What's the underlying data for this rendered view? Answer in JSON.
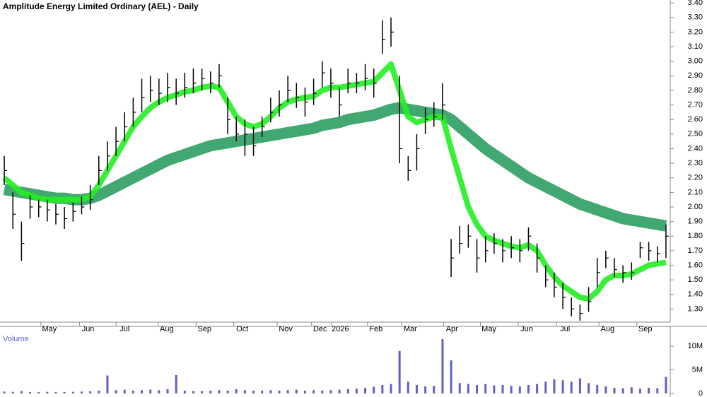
{
  "chart_data": [
    {
      "type": "ohlc",
      "title": "Amplitude Energy Limited Ordinary (AEL) - Daily",
      "high": [
        2.35,
        2.1,
        1.9,
        2.08,
        2.05,
        2.05,
        2.02,
        2.0,
        2.03,
        2.07,
        2.15,
        2.35,
        2.45,
        2.55,
        2.65,
        2.75,
        2.88,
        2.9,
        2.88,
        2.92,
        2.88,
        2.92,
        2.95,
        2.95,
        2.93,
        2.98,
        2.75,
        2.62,
        2.6,
        2.55,
        2.62,
        2.75,
        2.8,
        2.9,
        2.85,
        2.82,
        2.88,
        3.0,
        2.95,
        2.82,
        2.95,
        2.92,
        2.98,
        2.95,
        3.28,
        3.3,
        2.9,
        2.35,
        2.5,
        2.68,
        2.72,
        2.85,
        1.78,
        1.87,
        1.88,
        1.78,
        1.8,
        1.82,
        1.78,
        1.8,
        1.78,
        1.86,
        1.75,
        1.6,
        1.55,
        1.48,
        1.38,
        1.33,
        1.45,
        1.65,
        1.7,
        1.65,
        1.6,
        1.62,
        1.76,
        1.76,
        1.73,
        1.88
      ],
      "low": [
        2.15,
        1.85,
        1.63,
        1.92,
        1.93,
        1.9,
        1.88,
        1.85,
        1.9,
        1.95,
        1.98,
        2.15,
        2.25,
        2.35,
        2.45,
        2.55,
        2.65,
        2.72,
        2.7,
        2.72,
        2.7,
        2.75,
        2.78,
        2.8,
        2.78,
        2.82,
        2.5,
        2.45,
        2.35,
        2.35,
        2.48,
        2.58,
        2.62,
        2.72,
        2.68,
        2.62,
        2.7,
        2.82,
        2.75,
        2.62,
        2.78,
        2.78,
        2.8,
        2.75,
        3.05,
        3.1,
        2.3,
        2.18,
        2.25,
        2.5,
        2.55,
        2.6,
        1.52,
        1.68,
        1.72,
        1.55,
        1.62,
        1.68,
        1.62,
        1.65,
        1.62,
        1.7,
        1.55,
        1.45,
        1.38,
        1.3,
        1.25,
        1.22,
        1.28,
        1.45,
        1.58,
        1.52,
        1.48,
        1.5,
        1.65,
        1.63,
        1.62,
        1.65
      ],
      "close": [
        2.25,
        1.95,
        1.75,
        2.0,
        2.0,
        1.98,
        1.95,
        1.92,
        1.97,
        2.0,
        2.05,
        2.25,
        2.35,
        2.45,
        2.55,
        2.65,
        2.75,
        2.8,
        2.78,
        2.82,
        2.78,
        2.82,
        2.85,
        2.88,
        2.85,
        2.9,
        2.6,
        2.5,
        2.5,
        2.42,
        2.55,
        2.65,
        2.7,
        2.8,
        2.75,
        2.72,
        2.78,
        2.92,
        2.85,
        2.7,
        2.85,
        2.85,
        2.88,
        2.85,
        3.15,
        3.2,
        2.4,
        2.25,
        2.4,
        2.6,
        2.62,
        2.7,
        1.65,
        1.75,
        1.8,
        1.65,
        1.7,
        1.75,
        1.7,
        1.72,
        1.7,
        1.8,
        1.65,
        1.5,
        1.45,
        1.38,
        1.3,
        1.27,
        1.35,
        1.55,
        1.65,
        1.57,
        1.55,
        1.55,
        1.72,
        1.7,
        1.68,
        1.8
      ],
      "color": "#000000",
      "series": [
        {
          "color": "#2e9e62",
          "width": 16,
          "values": [
            2.12,
            2.11,
            2.1,
            2.09,
            2.08,
            2.07,
            2.06,
            2.06,
            2.05,
            2.05,
            2.06,
            2.08,
            2.11,
            2.14,
            2.17,
            2.2,
            2.23,
            2.26,
            2.29,
            2.32,
            2.34,
            2.36,
            2.38,
            2.4,
            2.42,
            2.43,
            2.44,
            2.45,
            2.46,
            2.47,
            2.48,
            2.49,
            2.5,
            2.51,
            2.52,
            2.53,
            2.54,
            2.56,
            2.57,
            2.58,
            2.6,
            2.61,
            2.62,
            2.63,
            2.65,
            2.67,
            2.68,
            2.67,
            2.66,
            2.65,
            2.64,
            2.63,
            2.6,
            2.55,
            2.5,
            2.45,
            2.4,
            2.36,
            2.32,
            2.28,
            2.24,
            2.2,
            2.17,
            2.14,
            2.11,
            2.08,
            2.05,
            2.02,
            2.0,
            1.98,
            1.96,
            1.94,
            1.92,
            1.91,
            1.9,
            1.89,
            1.88,
            1.87
          ]
        },
        {
          "color": "#22ee22",
          "width": 8,
          "values": [
            2.2,
            2.15,
            2.1,
            2.08,
            2.06,
            2.05,
            2.05,
            2.05,
            2.05,
            2.05,
            2.07,
            2.15,
            2.25,
            2.35,
            2.45,
            2.55,
            2.62,
            2.68,
            2.72,
            2.75,
            2.77,
            2.79,
            2.8,
            2.82,
            2.83,
            2.82,
            2.72,
            2.62,
            2.57,
            2.55,
            2.57,
            2.62,
            2.68,
            2.72,
            2.74,
            2.75,
            2.76,
            2.8,
            2.82,
            2.82,
            2.83,
            2.84,
            2.85,
            2.86,
            2.92,
            2.98,
            2.8,
            2.62,
            2.58,
            2.6,
            2.62,
            2.62,
            2.4,
            2.2,
            2.0,
            1.88,
            1.8,
            1.77,
            1.75,
            1.73,
            1.72,
            1.74,
            1.7,
            1.6,
            1.52,
            1.46,
            1.42,
            1.38,
            1.37,
            1.42,
            1.5,
            1.53,
            1.53,
            1.54,
            1.57,
            1.6,
            1.61,
            1.62
          ]
        }
      ],
      "xlim": [
        -0.5,
        77.5
      ],
      "xticks": [
        {
          "value": 5.25,
          "label": "May"
        },
        {
          "value": 9.75,
          "label": "Jun"
        },
        {
          "value": 14,
          "label": "Jul"
        },
        {
          "value": 18.9,
          "label": "Aug"
        },
        {
          "value": 23.3,
          "label": "Sep"
        },
        {
          "value": 27.7,
          "label": "Oct"
        },
        {
          "value": 32.75,
          "label": "Nov"
        },
        {
          "value": 36.75,
          "label": "Dec"
        },
        {
          "value": 39.1,
          "label": "2026"
        },
        {
          "value": 43.25,
          "label": "Feb"
        },
        {
          "value": 47.25,
          "label": "Mar"
        },
        {
          "value": 52.1,
          "label": "Apr"
        },
        {
          "value": 56.4,
          "label": "May"
        },
        {
          "value": 60.8,
          "label": "Jun"
        },
        {
          "value": 65.25,
          "label": "Jul"
        },
        {
          "value": 70.2,
          "label": "Aug"
        },
        {
          "value": 74.6,
          "label": "Sep"
        }
      ],
      "ylim": [
        1.21,
        3.42
      ],
      "yticks": [
        {
          "value": 1.3,
          "label": "1.30"
        },
        {
          "value": 1.4,
          "label": "1.40"
        },
        {
          "value": 1.5,
          "label": "1.50"
        },
        {
          "value": 1.6,
          "label": "1.60"
        },
        {
          "value": 1.7,
          "label": "1.70"
        },
        {
          "value": 1.8,
          "label": "1.80"
        },
        {
          "value": 1.9,
          "label": "1.90"
        },
        {
          "value": 2.0,
          "label": "2.00"
        },
        {
          "value": 2.1,
          "label": "2.10"
        },
        {
          "value": 2.2,
          "label": "2.20"
        },
        {
          "value": 2.3,
          "label": "2.30"
        },
        {
          "value": 2.4,
          "label": "2.40"
        },
        {
          "value": 2.5,
          "label": "2.50"
        },
        {
          "value": 2.6,
          "label": "2.60"
        },
        {
          "value": 2.7,
          "label": "2.70"
        },
        {
          "value": 2.8,
          "label": "2.80"
        },
        {
          "value": 2.9,
          "label": "2.90"
        },
        {
          "value": 3.0,
          "label": "3.00"
        },
        {
          "value": 3.1,
          "label": "3.10"
        },
        {
          "value": 3.2,
          "label": "3.20"
        },
        {
          "value": 3.3,
          "label": "3.30"
        },
        {
          "value": 3.4,
          "label": "3.40"
        }
      ]
    },
    {
      "type": "bar",
      "title": "Volume",
      "color": "#6060c8",
      "values": [
        400000,
        350000,
        500000,
        300000,
        300000,
        350000,
        300000,
        300000,
        350000,
        400000,
        450000,
        600000,
        3800000,
        700000,
        800000,
        600000,
        700000,
        800000,
        700000,
        900000,
        3900000,
        600000,
        500000,
        500000,
        600000,
        700000,
        600000,
        900000,
        700000,
        600000,
        600000,
        700000,
        600000,
        700000,
        800000,
        600000,
        700000,
        600000,
        700000,
        800000,
        900000,
        1000000,
        1200000,
        1400000,
        1800000,
        2000000,
        9000000,
        2500000,
        1800000,
        1500000,
        1600000,
        11500000,
        7000000,
        2200000,
        2000000,
        1800000,
        2000000,
        1700000,
        1800000,
        1600000,
        1500000,
        1800000,
        2000000,
        2500000,
        3000000,
        2800000,
        2500000,
        3200000,
        2200000,
        1800000,
        1500000,
        1200000,
        1100000,
        1300000,
        1000000,
        1200000,
        1100000,
        3500000
      ],
      "xlim": [
        -0.5,
        77.5
      ],
      "ylim": [
        0,
        14200000
      ],
      "yticks": [
        0,
        {
          "value": 5000000,
          "label": "5M"
        },
        {
          "value": 10000000,
          "label": "10M"
        }
      ]
    }
  ]
}
